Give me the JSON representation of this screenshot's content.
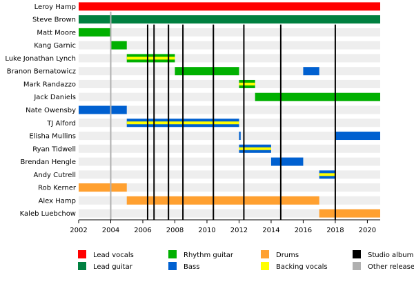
{
  "chart_data": {
    "type": "bar",
    "subtype": "timeline",
    "title": "",
    "xlabel": "",
    "ylabel": "",
    "xlim": [
      2002,
      2020.8
    ],
    "x_ticks": [
      2002,
      2004,
      2006,
      2008,
      2010,
      2012,
      2014,
      2016,
      2018,
      2020
    ],
    "colors": {
      "lead_vocals": "#ff0000",
      "lead_guitar": "#008040",
      "rhythm_guitar": "#00b000",
      "bass": "#0060d0",
      "drums": "#ffa030",
      "backing_vocals": "#ffff00",
      "studio_album": "#000000",
      "other_release": "#b0b0b0"
    },
    "members": [
      {
        "name": "Leroy Hamp",
        "roles": [
          {
            "role": "lead_vocals",
            "start": 2002,
            "end": 2020.8
          }
        ]
      },
      {
        "name": "Steve Brown",
        "roles": [
          {
            "role": "lead_guitar",
            "start": 2002,
            "end": 2020.8
          }
        ]
      },
      {
        "name": "Matt Moore",
        "roles": [
          {
            "role": "rhythm_guitar",
            "start": 2002,
            "end": 2004
          }
        ]
      },
      {
        "name": "Kang Garnic",
        "roles": [
          {
            "role": "rhythm_guitar",
            "start": 2004,
            "end": 2005
          }
        ]
      },
      {
        "name": "Luke Jonathan Lynch",
        "roles": [
          {
            "role": "rhythm_guitar",
            "start": 2005,
            "end": 2008,
            "backing": true
          }
        ]
      },
      {
        "name": "Branon Bernatowicz",
        "roles": [
          {
            "role": "rhythm_guitar",
            "start": 2008,
            "end": 2012
          },
          {
            "role": "bass",
            "start": 2016,
            "end": 2017
          }
        ]
      },
      {
        "name": "Mark Randazzo",
        "roles": [
          {
            "role": "rhythm_guitar",
            "start": 2012,
            "end": 2013,
            "backing": true
          }
        ]
      },
      {
        "name": "Jack Daniels",
        "roles": [
          {
            "role": "rhythm_guitar",
            "start": 2013,
            "end": 2020.8
          }
        ]
      },
      {
        "name": "Nate Owensby",
        "roles": [
          {
            "role": "bass",
            "start": 2002,
            "end": 2005
          }
        ]
      },
      {
        "name": "TJ Alford",
        "roles": [
          {
            "role": "bass",
            "start": 2005,
            "end": 2012,
            "backing": true
          }
        ]
      },
      {
        "name": "Elisha Mullins",
        "roles": [
          {
            "role": "bass",
            "start": 2012,
            "end": 2012.1
          },
          {
            "role": "bass",
            "start": 2018,
            "end": 2020.8
          }
        ]
      },
      {
        "name": "Ryan Tidwell",
        "roles": [
          {
            "role": "bass",
            "start": 2012,
            "end": 2014,
            "backing": true
          }
        ]
      },
      {
        "name": "Brendan Hengle",
        "roles": [
          {
            "role": "bass",
            "start": 2014,
            "end": 2016
          }
        ]
      },
      {
        "name": "Andy Cutrell",
        "roles": [
          {
            "role": "bass",
            "start": 2017,
            "end": 2018,
            "backing": true
          }
        ]
      },
      {
        "name": "Rob Kerner",
        "roles": [
          {
            "role": "drums",
            "start": 2002,
            "end": 2005
          }
        ]
      },
      {
        "name": "Alex Hamp",
        "roles": [
          {
            "role": "drums",
            "start": 2005,
            "end": 2017
          }
        ]
      },
      {
        "name": "Kaleb Luebchow",
        "roles": [
          {
            "role": "drums",
            "start": 2017,
            "end": 2020.8
          }
        ]
      }
    ],
    "studio_albums": [
      2006.3,
      2006.7,
      2007.6,
      2008.5,
      2010.4,
      2012.3,
      2014.6,
      2018.0
    ],
    "other_releases": [
      2004.0
    ],
    "legend": [
      {
        "key": "lead_vocals",
        "label": "Lead vocals"
      },
      {
        "key": "lead_guitar",
        "label": "Lead guitar"
      },
      {
        "key": "rhythm_guitar",
        "label": "Rhythm guitar"
      },
      {
        "key": "bass",
        "label": "Bass"
      },
      {
        "key": "drums",
        "label": "Drums"
      },
      {
        "key": "backing_vocals",
        "label": "Backing vocals"
      },
      {
        "key": "studio_album",
        "label": "Studio album"
      },
      {
        "key": "other_release",
        "label": "Other release"
      }
    ],
    "legend_placement": "bottom"
  }
}
